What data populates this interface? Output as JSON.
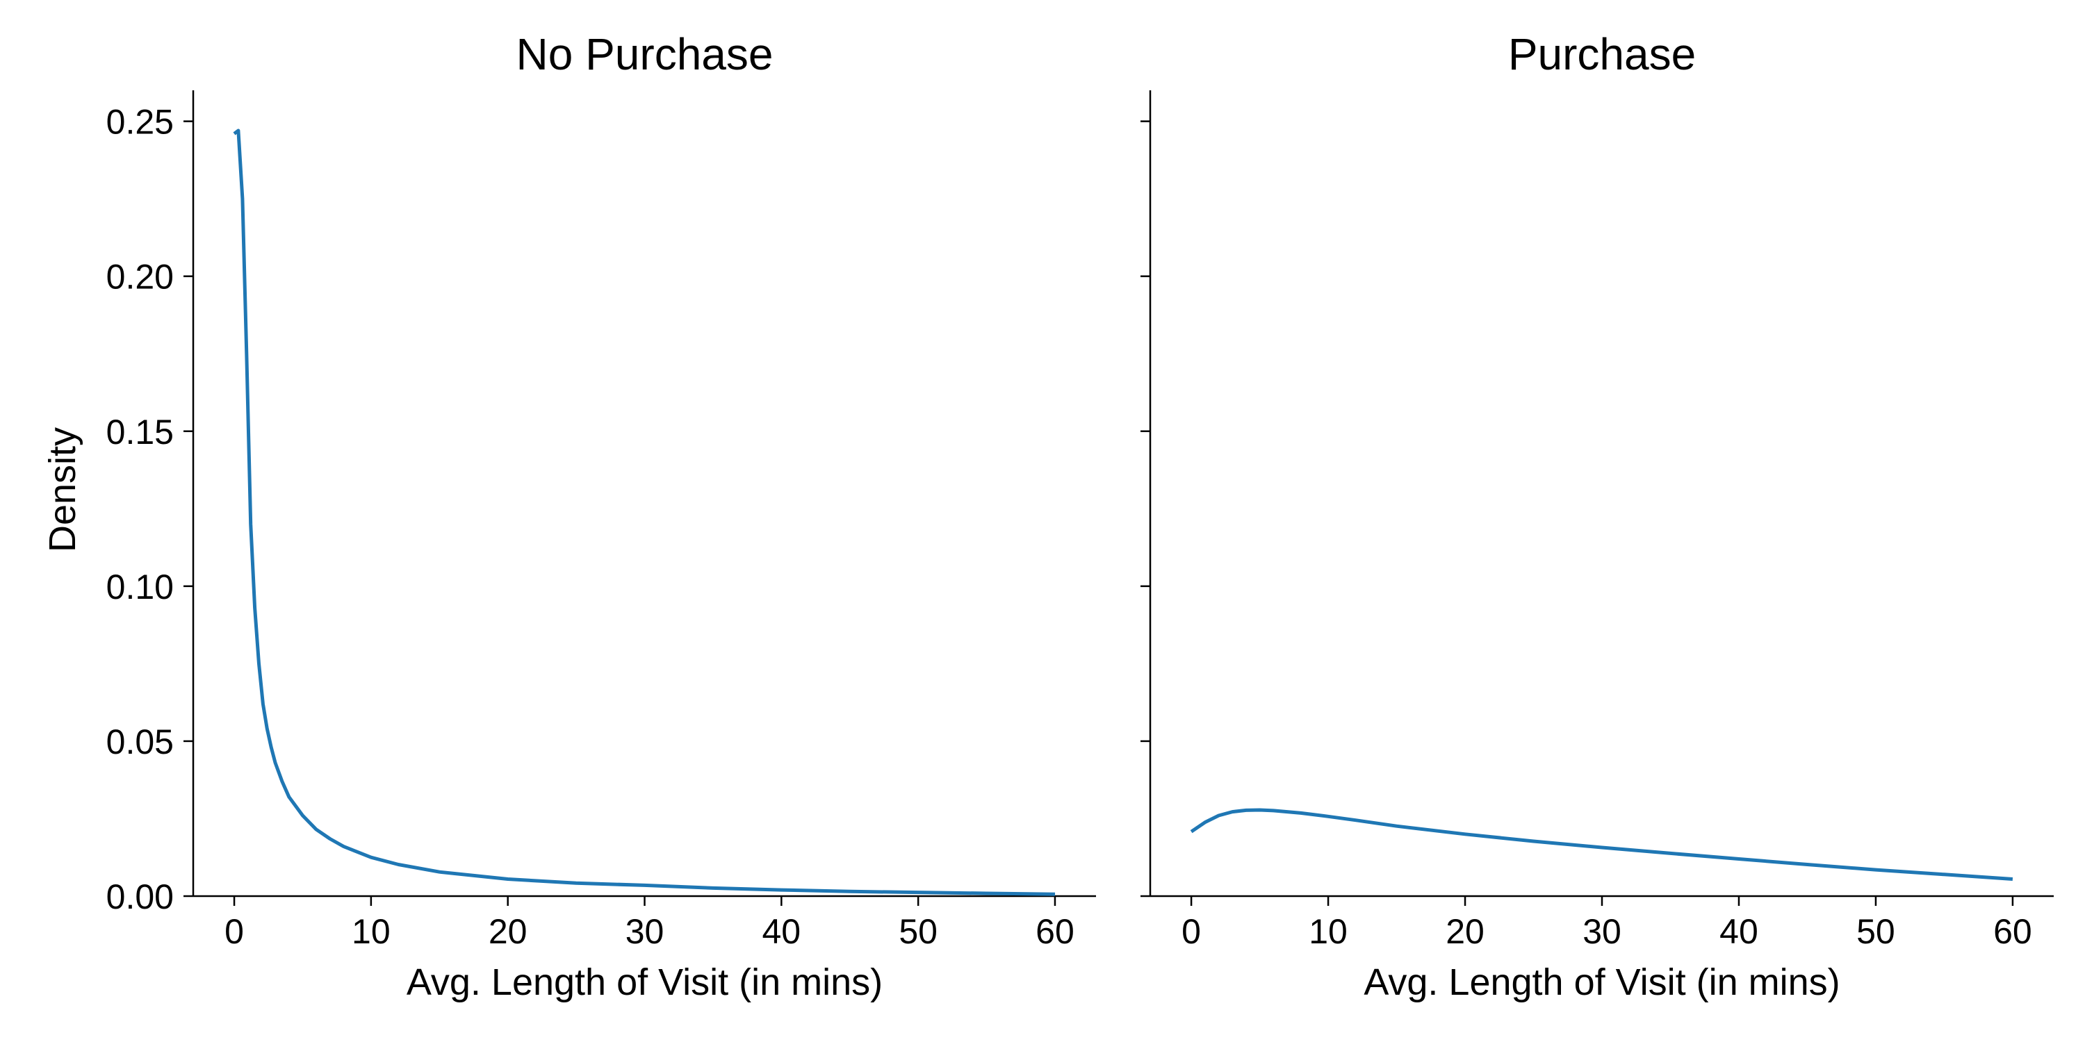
{
  "chart_data": {
    "type": "line",
    "shared_y": true,
    "ylabel": "Density",
    "ylim": [
      0,
      0.26
    ],
    "y_ticks": [
      0.0,
      0.05,
      0.1,
      0.15,
      0.2,
      0.25
    ],
    "y_tick_labels": [
      "0.00",
      "0.05",
      "0.10",
      "0.15",
      "0.20",
      "0.25"
    ],
    "x_ticks": [
      0,
      10,
      20,
      30,
      40,
      50,
      60
    ],
    "x_tick_labels": [
      "0",
      "10",
      "20",
      "30",
      "40",
      "50",
      "60"
    ],
    "grid": false,
    "line_color": "#1f77b4",
    "panels": [
      {
        "title": "No Purchase",
        "xlabel": "Avg. Length of Visit (in mins)",
        "xlim": [
          -3,
          63
        ],
        "series": [
          {
            "x": [
              0,
              0.3,
              0.6,
              0.9,
              1.2,
              1.5,
              1.8,
              2.1,
              2.4,
              2.7,
              3.0,
              3.5,
              4.0,
              5.0,
              6.0,
              7.0,
              8.0,
              10.0,
              12.0,
              15.0,
              20.0,
              25.0,
              30.0,
              35.0,
              40.0,
              45.0,
              50.0,
              55.0,
              60.0
            ],
            "y": [
              0.246,
              0.247,
              0.225,
              0.175,
              0.12,
              0.093,
              0.075,
              0.062,
              0.054,
              0.048,
              0.043,
              0.037,
              0.032,
              0.026,
              0.0215,
              0.0185,
              0.016,
              0.0125,
              0.0102,
              0.0078,
              0.0055,
              0.0042,
              0.0035,
              0.0026,
              0.002,
              0.0015,
              0.0012,
              0.0009,
              0.0006
            ]
          }
        ]
      },
      {
        "title": "Purchase",
        "xlabel": "Avg. Length of Visit (in mins)",
        "xlim": [
          -3,
          63
        ],
        "series": [
          {
            "x": [
              0,
              1,
              2,
              3,
              4,
              5,
              6,
              8,
              10,
              12,
              15,
              20,
              25,
              30,
              35,
              40,
              45,
              50,
              55,
              60
            ],
            "y": [
              0.0208,
              0.0238,
              0.026,
              0.0272,
              0.0277,
              0.0278,
              0.0276,
              0.0268,
              0.0257,
              0.0245,
              0.0226,
              0.02,
              0.0177,
              0.0157,
              0.0138,
              0.012,
              0.0102,
              0.0085,
              0.007,
              0.0055
            ]
          }
        ]
      }
    ]
  }
}
